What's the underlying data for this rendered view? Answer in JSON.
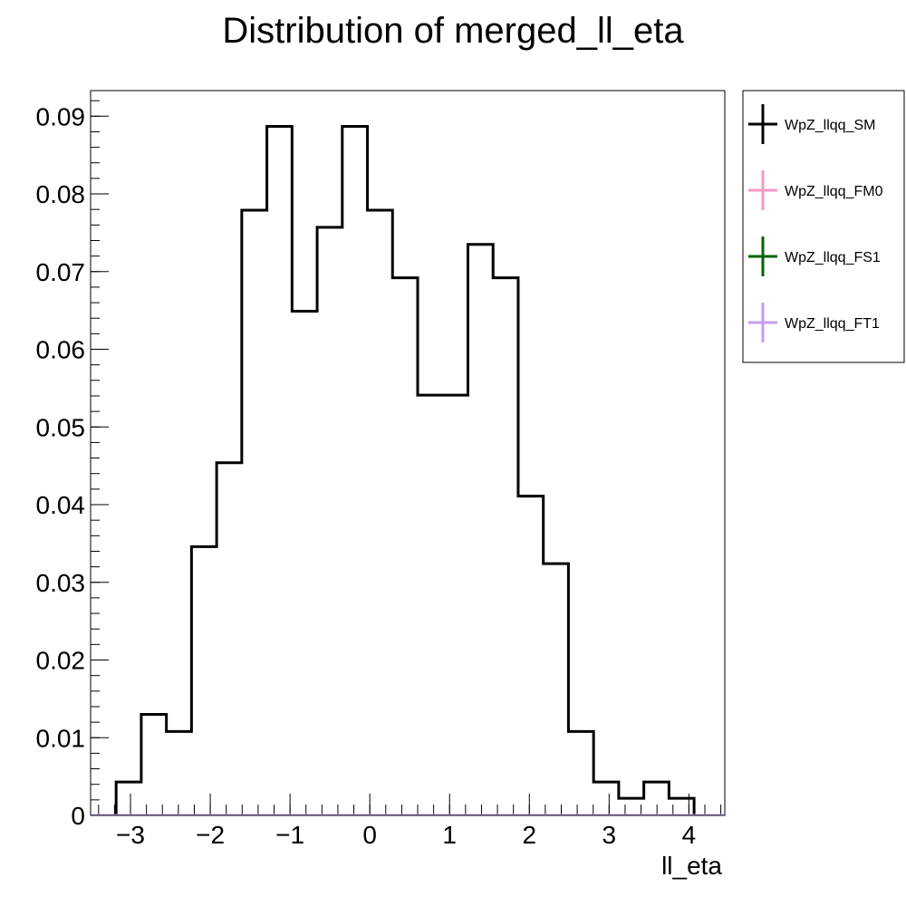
{
  "chart_data": {
    "type": "histogram",
    "title": "Distribution of merged_ll_eta",
    "xlabel": "ll_eta",
    "ylabel": "",
    "xlim": [
      -3.5,
      4.45
    ],
    "ylim": [
      0,
      0.0933
    ],
    "x_ticks": [
      -3,
      -2,
      -1,
      0,
      1,
      2,
      3,
      4
    ],
    "x_tick_labels": [
      "−3",
      "−2",
      "−1",
      "0",
      "1",
      "2",
      "3",
      "4"
    ],
    "y_ticks": [
      0,
      0.01,
      0.02,
      0.03,
      0.04,
      0.05,
      0.06,
      0.07,
      0.08,
      0.09
    ],
    "y_tick_labels": [
      "0",
      "0.01",
      "0.02",
      "0.03",
      "0.04",
      "0.05",
      "0.06",
      "0.07",
      "0.08",
      "0.09"
    ],
    "bin_edges": [
      -3.18,
      -2.865,
      -2.55,
      -2.235,
      -1.92,
      -1.605,
      -1.29,
      -0.975,
      -0.66,
      -0.345,
      -0.03,
      0.285,
      0.6,
      0.915,
      1.23,
      1.545,
      1.86,
      2.175,
      2.49,
      2.805,
      3.12,
      3.435,
      3.75,
      4.065
    ],
    "series": [
      {
        "name": "WpZ_llqq_SM",
        "color": "#000000",
        "values": [
          0.0043,
          0.013,
          0.0108,
          0.0346,
          0.0454,
          0.0779,
          0.0887,
          0.0649,
          0.0757,
          0.0887,
          0.0779,
          0.0692,
          0.0541,
          0.0541,
          0.0735,
          0.0692,
          0.0411,
          0.0324,
          0.0108,
          0.0043,
          0.0022,
          0.0043,
          0.0022
        ]
      },
      {
        "name": "WpZ_llqq_FM0",
        "color": "#f29ac6",
        "values": []
      },
      {
        "name": "WpZ_llqq_FS1",
        "color": "#006400",
        "values": []
      },
      {
        "name": "WpZ_llqq_FT1",
        "color": "#c79bf2",
        "values": []
      }
    ],
    "legend_position": "top-right (outside plot)",
    "grid": false
  }
}
